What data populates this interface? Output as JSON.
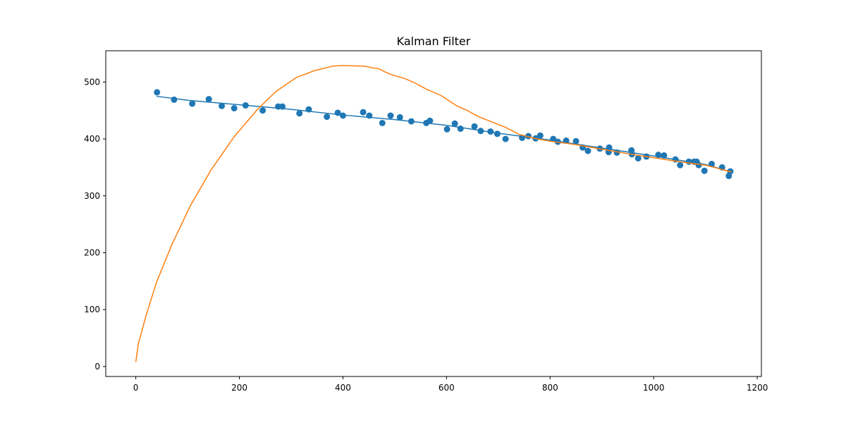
{
  "chart_data": {
    "type": "line",
    "title": "Kalman Filter",
    "xlabel": "",
    "ylabel": "",
    "xlim": [
      -58,
      1208
    ],
    "ylim": [
      -17.5,
      555
    ],
    "x_ticks": [
      0,
      200,
      400,
      600,
      800,
      1000,
      1200
    ],
    "y_ticks": [
      0,
      100,
      200,
      300,
      400,
      500
    ],
    "grid": false,
    "legend": null,
    "series": [
      {
        "kind": "scatter",
        "color": "#1f77b4",
        "points": [
          [
            41,
            482
          ],
          [
            74,
            469
          ],
          [
            109,
            462
          ],
          [
            141,
            470
          ],
          [
            166,
            458
          ],
          [
            190,
            454
          ],
          [
            212,
            459
          ],
          [
            245,
            450
          ],
          [
            275,
            457
          ],
          [
            283,
            457
          ],
          [
            316,
            445
          ],
          [
            334,
            452
          ],
          [
            369,
            439
          ],
          [
            390,
            446
          ],
          [
            400,
            441
          ],
          [
            439,
            447
          ],
          [
            451,
            441
          ],
          [
            476,
            428
          ],
          [
            492,
            441
          ],
          [
            510,
            438
          ],
          [
            532,
            431
          ],
          [
            561,
            428
          ],
          [
            568,
            432
          ],
          [
            601,
            417
          ],
          [
            616,
            427
          ],
          [
            627,
            418
          ],
          [
            654,
            422
          ],
          [
            666,
            414
          ],
          [
            685,
            413
          ],
          [
            698,
            409
          ],
          [
            714,
            400
          ],
          [
            746,
            402
          ],
          [
            758,
            405
          ],
          [
            772,
            401
          ],
          [
            781,
            406
          ],
          [
            806,
            400
          ],
          [
            815,
            395
          ],
          [
            831,
            397
          ],
          [
            850,
            396
          ],
          [
            863,
            385
          ],
          [
            873,
            379
          ],
          [
            896,
            383
          ],
          [
            913,
            377
          ],
          [
            914,
            385
          ],
          [
            929,
            376
          ],
          [
            957,
            380
          ],
          [
            958,
            373
          ],
          [
            970,
            366
          ],
          [
            986,
            369
          ],
          [
            1009,
            372
          ],
          [
            1020,
            371
          ],
          [
            1042,
            364
          ],
          [
            1051,
            354
          ],
          [
            1068,
            360
          ],
          [
            1078,
            360
          ],
          [
            1083,
            360
          ],
          [
            1087,
            354
          ],
          [
            1098,
            344
          ],
          [
            1112,
            356
          ],
          [
            1132,
            350
          ],
          [
            1145,
            335
          ],
          [
            1148,
            343
          ]
        ]
      },
      {
        "kind": "line",
        "color": "#1f77b4",
        "points": [
          [
            40,
            475
          ],
          [
            100,
            468
          ],
          [
            200,
            460
          ],
          [
            300,
            452
          ],
          [
            400,
            442
          ],
          [
            500,
            434
          ],
          [
            600,
            424
          ],
          [
            700,
            410
          ],
          [
            800,
            398
          ],
          [
            900,
            384
          ],
          [
            1000,
            370
          ],
          [
            1100,
            355
          ],
          [
            1150,
            342
          ]
        ]
      },
      {
        "kind": "line",
        "color": "#ff7f0e",
        "points": [
          [
            0,
            8
          ],
          [
            5,
            40
          ],
          [
            20,
            90
          ],
          [
            40,
            148
          ],
          [
            70,
            215
          ],
          [
            105,
            282
          ],
          [
            145,
            345
          ],
          [
            190,
            404
          ],
          [
            235,
            452
          ],
          [
            270,
            483
          ],
          [
            310,
            508
          ],
          [
            345,
            520
          ],
          [
            380,
            528
          ],
          [
            400,
            529
          ],
          [
            440,
            528
          ],
          [
            470,
            523
          ],
          [
            490,
            514
          ],
          [
            520,
            506
          ],
          [
            540,
            498
          ],
          [
            560,
            488
          ],
          [
            590,
            476
          ],
          [
            620,
            458
          ],
          [
            640,
            450
          ],
          [
            660,
            440
          ],
          [
            690,
            429
          ],
          [
            715,
            420
          ],
          [
            740,
            408
          ],
          [
            770,
            401
          ],
          [
            800,
            396
          ],
          [
            850,
            390
          ],
          [
            900,
            382
          ],
          [
            950,
            374
          ],
          [
            1000,
            367
          ],
          [
            1050,
            360
          ],
          [
            1100,
            354
          ],
          [
            1150,
            342
          ]
        ]
      }
    ]
  }
}
